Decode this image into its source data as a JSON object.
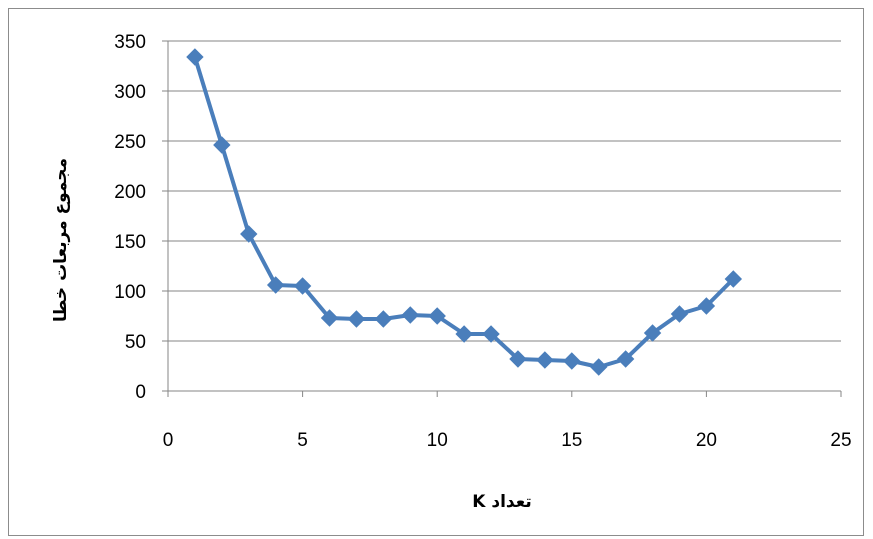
{
  "chart_data": {
    "type": "line",
    "xlabel": "تعداد K",
    "ylabel": "مجموع مربعات خطا",
    "xlim": [
      0,
      25
    ],
    "ylim": [
      0,
      350
    ],
    "xticks": [
      0,
      5,
      10,
      15,
      20,
      25
    ],
    "yticks": [
      0,
      50,
      100,
      150,
      200,
      250,
      300,
      350
    ],
    "grid": "horizontal",
    "marker": "diamond",
    "color": "#4a7ebb",
    "series": [
      {
        "x": [
          1,
          2,
          3,
          4,
          5,
          6,
          7,
          8,
          9,
          10,
          11,
          12,
          13,
          14,
          15,
          16,
          17,
          18,
          19,
          20,
          21
        ],
        "values": [
          334,
          246,
          157,
          106,
          105,
          73,
          72,
          72,
          76,
          75,
          57,
          57,
          32,
          31,
          30,
          24,
          32,
          58,
          77,
          85,
          112
        ]
      }
    ]
  }
}
